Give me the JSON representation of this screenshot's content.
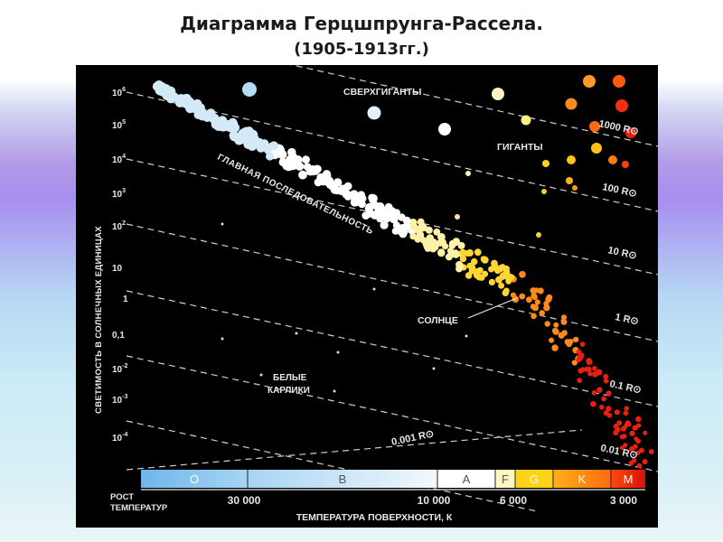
{
  "title": "Диаграмма Герцшпрунга-Рассела.",
  "subtitle": "(1905-1913гг.)",
  "y_axis": {
    "label": "СВЕТИМОСТЬ В СОЛНЕЧНЫХ ЕДИНИЦАХ",
    "ticks": [
      {
        "base": "10",
        "exp": "6"
      },
      {
        "base": "10",
        "exp": "5"
      },
      {
        "base": "10",
        "exp": "4"
      },
      {
        "base": "10",
        "exp": "3"
      },
      {
        "base": "10",
        "exp": "2"
      },
      {
        "base": "10",
        "exp": ""
      },
      {
        "base": "1",
        "exp": ""
      },
      {
        "base": "0,1",
        "exp": ""
      },
      {
        "base": "10",
        "exp": "-2"
      },
      {
        "base": "10",
        "exp": "-3"
      },
      {
        "base": "10",
        "exp": "-4"
      }
    ]
  },
  "x_axis": {
    "label": "ТЕМПЕРАТУРА ПОВЕРХНОСТИ, К",
    "growth_label": [
      "РОСТ",
      "ТЕМПЕРАТУР"
    ],
    "ticks": [
      "30 000",
      "10 000",
      "6 000",
      "3 000"
    ]
  },
  "spectral_classes": [
    "O",
    "B",
    "A",
    "F",
    "G",
    "K",
    "M"
  ],
  "radius_lines": [
    "1000 R⊙",
    "100 R⊙",
    "10 R⊙",
    "1 R⊙",
    "0.1 R⊙",
    "0.01 R⊙",
    "0.001 R⊙"
  ],
  "regions": {
    "supergiants": "СВЕРХГИГАНТЫ",
    "giants": "ГИГАНТЫ",
    "main_sequence": "ГЛАВНАЯ ПОСЛЕДОВАТЕЛЬНОСТЬ",
    "sun": "СОЛНЦЕ",
    "white_dwarfs": [
      "БЕЛЫЕ",
      "КАРЛИКИ"
    ]
  },
  "colors": {
    "O": "#8fc6ee",
    "B": "#d3e9f8",
    "A": "#ffffff",
    "F": "#fff2a8",
    "G": "#ffd633",
    "K": "#ff8a1a",
    "M": "#e82010"
  }
}
